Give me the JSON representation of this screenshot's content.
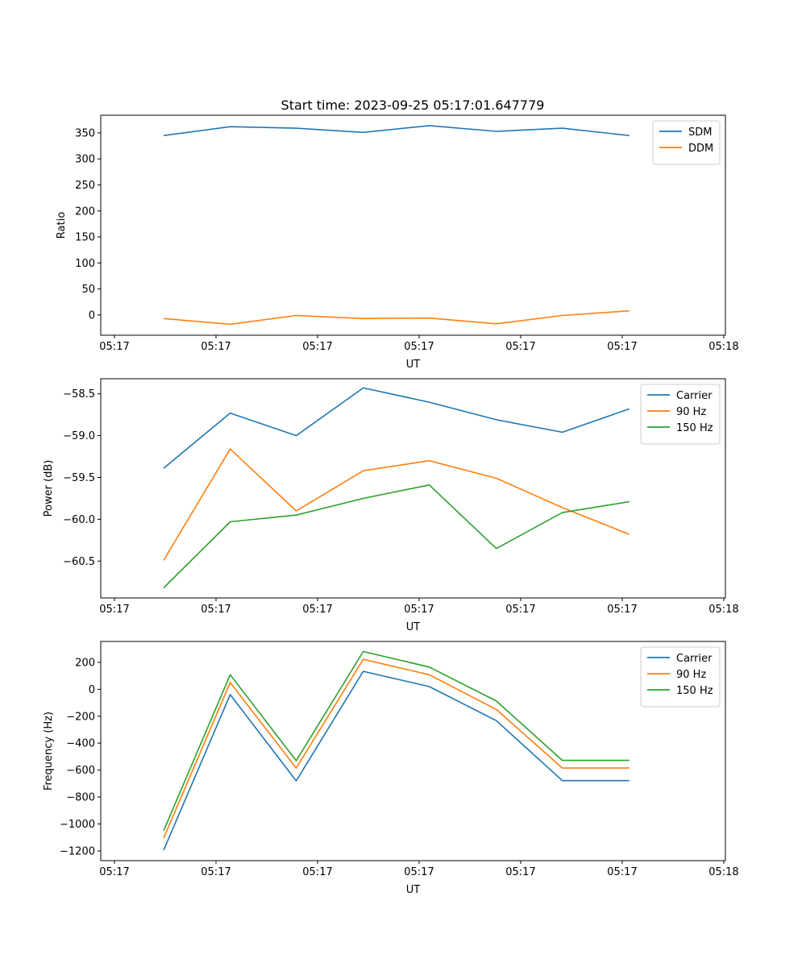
{
  "chart_data": {
    "type": "line",
    "title": "Start time: 2023-09-25 05:17:01.647779",
    "x_unit": "seconds after 05:17:00 UT",
    "x": [
      4.84,
      11.4,
      17.9,
      24.5,
      31.0,
      37.6,
      44.1,
      50.7
    ],
    "xticks": [
      0,
      10,
      20,
      30,
      40,
      50,
      60
    ],
    "xtick_labels": [
      "05:17",
      "05:17",
      "05:17",
      "05:17",
      "05:17",
      "05:17",
      "05:18"
    ],
    "xlim": [
      -1.35,
      60.16
    ],
    "grid": false,
    "panels": [
      {
        "xlabel": "UT",
        "ylabel": "Ratio",
        "ylim": [
          -39,
          384
        ],
        "yticks": [
          0,
          50,
          100,
          150,
          200,
          250,
          300,
          350
        ],
        "ytick_labels": [
          "0",
          "50",
          "100",
          "150",
          "200",
          "250",
          "300",
          "350"
        ],
        "legend_placement": "top-right",
        "series": [
          {
            "name": "SDM",
            "color": "#1f77b4",
            "values": [
              345,
              362,
              359,
              351,
              364,
              353,
              359,
              345
            ]
          },
          {
            "name": "DDM",
            "color": "#ff7f0e",
            "values": [
              -7,
              -18,
              -1,
              -7,
              -6,
              -17,
              -1,
              8
            ]
          }
        ]
      },
      {
        "xlabel": "UT",
        "ylabel": "Power (dB)",
        "ylim": [
          -60.94,
          -58.32
        ],
        "yticks": [
          -60.5,
          -60.0,
          -59.5,
          -59.0,
          -58.5
        ],
        "ytick_labels": [
          "−60.5",
          "−60.0",
          "−59.5",
          "−59.0",
          "−58.5"
        ],
        "legend_placement": "top-right",
        "series": [
          {
            "name": "Carrier",
            "color": "#1f77b4",
            "values": [
              -59.39,
              -58.73,
              -59.0,
              -58.43,
              -58.6,
              -58.81,
              -58.96,
              -58.68
            ]
          },
          {
            "name": "90 Hz",
            "color": "#ff7f0e",
            "values": [
              -60.49,
              -59.16,
              -59.9,
              -59.42,
              -59.3,
              -59.51,
              -59.86,
              -60.18
            ]
          },
          {
            "name": "150 Hz",
            "color": "#2ca02c",
            "values": [
              -60.82,
              -60.03,
              -59.95,
              -59.75,
              -59.59,
              -60.35,
              -59.92,
              -59.79
            ]
          }
        ]
      },
      {
        "xlabel": "UT",
        "ylabel": "Frequency (Hz)",
        "ylim": [
          -1272,
          355
        ],
        "yticks": [
          -1200,
          -1000,
          -800,
          -600,
          -400,
          -200,
          0,
          200
        ],
        "ytick_labels": [
          "−1200",
          "−1000",
          "−800",
          "−600",
          "−400",
          "−200",
          "0",
          "200"
        ],
        "legend_placement": "top-right",
        "series": [
          {
            "name": "Carrier",
            "color": "#1f77b4",
            "values": [
              -1195,
              -40,
              -680,
              133,
              20,
              -233,
              -678,
              -678
            ]
          },
          {
            "name": "90 Hz",
            "color": "#ff7f0e",
            "values": [
              -1105,
              50,
              -585,
              222,
              108,
              -150,
              -585,
              -585
            ]
          },
          {
            "name": "150 Hz",
            "color": "#2ca02c",
            "values": [
              -1050,
              108,
              -530,
              280,
              165,
              -87,
              -528,
              -528
            ]
          }
        ]
      }
    ]
  }
}
